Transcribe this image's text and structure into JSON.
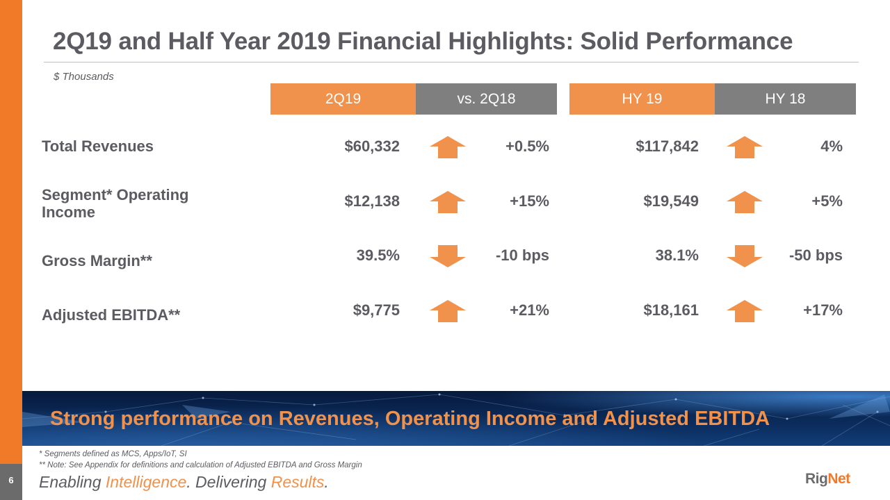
{
  "slide": {
    "title": "2Q19 and Half Year 2019 Financial Highlights: Solid Performance",
    "units": "$ Thousands",
    "page_number": "6"
  },
  "table": {
    "headers": [
      "2Q19",
      "vs. 2Q18",
      "HY 19",
      "HY 18"
    ],
    "rows": [
      {
        "label": "Total Revenues",
        "q_value": "$60,332",
        "q_direction": "up",
        "q_change": "+0.5%",
        "hy_value": "$117,842",
        "hy_direction": "up",
        "hy_change": "4%"
      },
      {
        "label": "Segment* Operating Income",
        "q_value": "$12,138",
        "q_direction": "up",
        "q_change": "+15%",
        "hy_value": "$19,549",
        "hy_direction": "up",
        "hy_change": "+5%"
      },
      {
        "label": "Gross Margin**",
        "q_value": "39.5%",
        "q_direction": "down",
        "q_change": "-10 bps",
        "hy_value": "38.1%",
        "hy_direction": "down",
        "hy_change": "-50 bps"
      },
      {
        "label": "Adjusted EBITDA**",
        "q_value": "$9,775",
        "q_direction": "up",
        "q_change": "+21%",
        "hy_value": "$18,161",
        "hy_direction": "up",
        "hy_change": "+17%"
      }
    ]
  },
  "banner": {
    "text": "Strong performance on Revenues, Operating Income and Adjusted EBITDA"
  },
  "footnotes": [
    "*   Segments defined as MCS, Apps/IoT, SI",
    "** Note:  See Appendix for definitions and calculation of Adjusted EBITDA and Gross Margin"
  ],
  "tagline": {
    "part1": "Enabling ",
    "highlight1": "Intelligence",
    "part2": ".  Delivering ",
    "highlight2": "Results",
    "part3": "."
  },
  "logo": {
    "part1": "Rig",
    "part2": "Net"
  },
  "colors": {
    "accent_orange": "#f07a28",
    "header_orange": "#f0914c",
    "header_gray": "#7f7f7f",
    "text_gray": "#5b5b61"
  }
}
